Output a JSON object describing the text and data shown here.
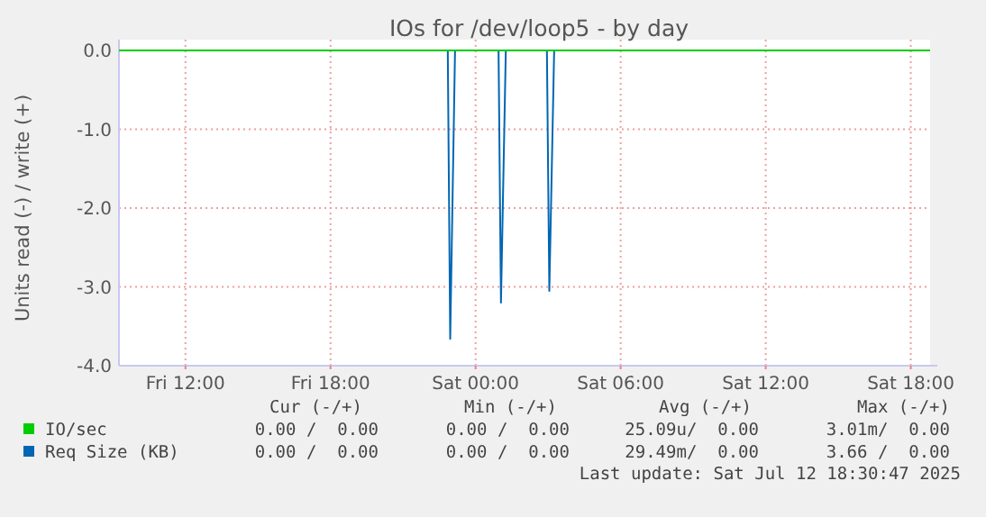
{
  "chart_data": {
    "type": "line",
    "title": "IOs for /dev/loop5 - by day",
    "ylabel": "Units read (-) / write (+)",
    "xlim": [
      "2025-07-11T09:15",
      "2025-07-12T18:48"
    ],
    "xticks": [
      {
        "value": "2025-07-11T12:00",
        "label": "Fri 12:00"
      },
      {
        "value": "2025-07-11T18:00",
        "label": "Fri 18:00"
      },
      {
        "value": "2025-07-12T00:00",
        "label": "Sat 00:00"
      },
      {
        "value": "2025-07-12T06:00",
        "label": "Sat 06:00"
      },
      {
        "value": "2025-07-12T12:00",
        "label": "Sat 12:00"
      },
      {
        "value": "2025-07-12T18:00",
        "label": "Sat 18:00"
      }
    ],
    "ylim": [
      -4,
      0
    ],
    "yticks": [
      {
        "value": 0,
        "label": "0.0"
      },
      {
        "value": -1,
        "label": "-1.0"
      },
      {
        "value": -2,
        "label": "-2.0"
      },
      {
        "value": -3,
        "label": "-3.0"
      },
      {
        "value": -4,
        "label": "-4.0"
      }
    ],
    "grid": true,
    "legend": "bottom left",
    "series": [
      {
        "name": "IO/sec",
        "color": "#00cc00",
        "x": [
          "2025-07-11T09:15",
          "2025-07-12T18:48"
        ],
        "values": [
          0,
          0
        ]
      },
      {
        "name": "Req Size (KB)",
        "color": "#0066b3",
        "x": [
          "2025-07-11T09:15",
          "2025-07-11T22:51",
          "2025-07-11T22:57",
          "2025-07-11T23:09",
          "2025-07-12T00:57",
          "2025-07-12T01:03",
          "2025-07-12T01:15",
          "2025-07-12T02:57",
          "2025-07-12T03:03",
          "2025-07-12T03:15",
          "2025-07-12T18:48"
        ],
        "values": [
          0,
          0,
          -3.66,
          0,
          0,
          -3.2,
          0,
          0,
          -3.05,
          0,
          0
        ]
      }
    ],
    "annotations": [
      "Cur (-/+)",
      "Min (-/+)",
      "Avg (-/+)",
      "Max (-/+)",
      "0.00 /  0.00",
      "0.00 /  0.00",
      "25.09u/  0.00",
      "3.01m/  0.00",
      "0.00 /  0.00",
      "0.00 /  0.00",
      "29.49m/  0.00",
      "3.66 /  0.00",
      "Last update: Sat Jul 12 18:30:47 2025"
    ]
  }
}
